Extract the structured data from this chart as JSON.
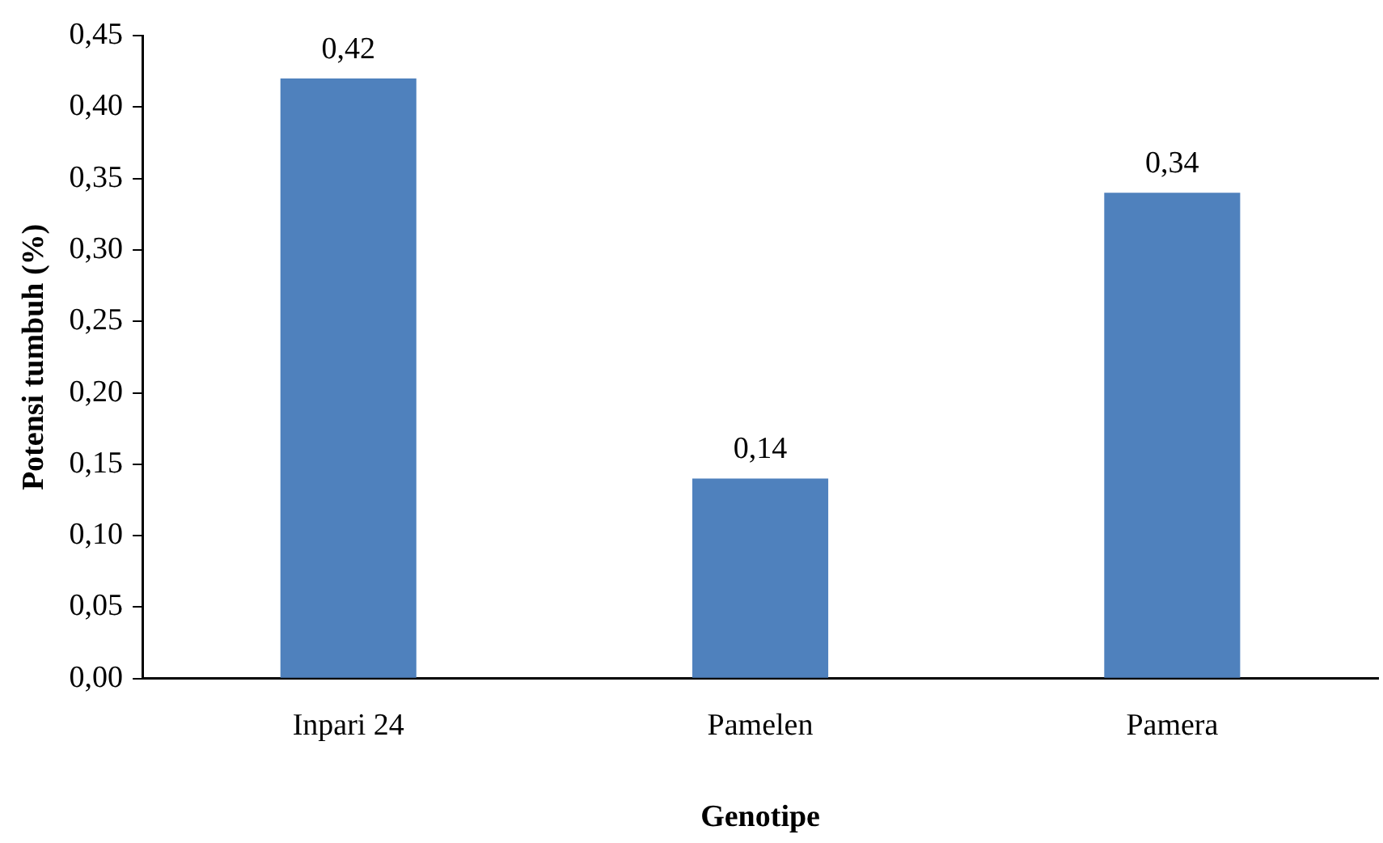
{
  "chart_data": {
    "type": "bar",
    "xlabel": "Genotipe",
    "ylabel": "Potensi tumbuh (%)",
    "categories": [
      "Inpari 24",
      "Pamelen",
      "Pamera"
    ],
    "values": [
      0.42,
      0.14,
      0.34
    ],
    "value_labels": [
      "0,42",
      "0,14",
      "0,34"
    ],
    "color": "#4f81bd",
    "ylim": [
      0,
      0.45
    ],
    "yticks": [
      {
        "value": 0,
        "label": "0,00"
      },
      {
        "value": 0.05,
        "label": "0,05"
      },
      {
        "value": 0.1,
        "label": "0,10"
      },
      {
        "value": 0.15,
        "label": "0,15"
      },
      {
        "value": 0.2,
        "label": "0,20"
      },
      {
        "value": 0.25,
        "label": "0,25"
      },
      {
        "value": 0.3,
        "label": "0,30"
      },
      {
        "value": 0.35,
        "label": "0,35"
      },
      {
        "value": 0.4,
        "label": "0,40"
      },
      {
        "value": 0.45,
        "label": "0,45"
      }
    ],
    "grid": false,
    "legend": false
  }
}
